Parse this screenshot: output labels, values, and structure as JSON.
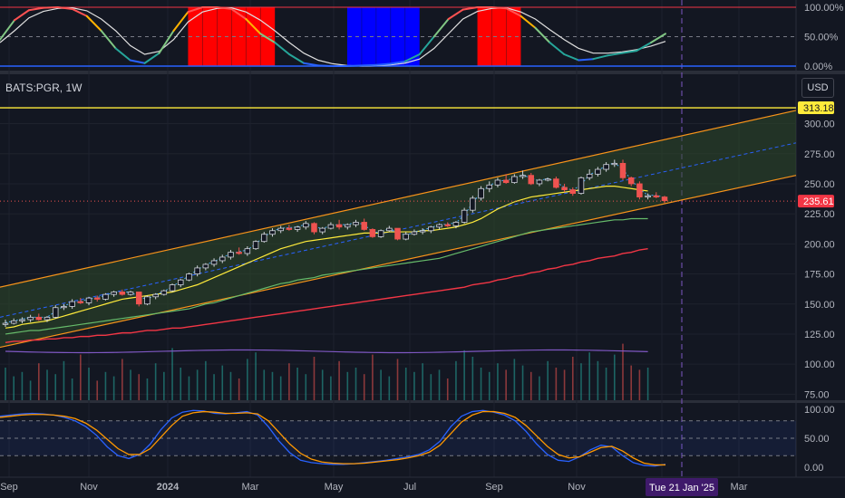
{
  "header": {
    "symbol": "BATS:PGR, 1W",
    "currency": "USD"
  },
  "colors": {
    "background": "#131722",
    "grid": "#1e222d",
    "axis_text": "#b2b5be",
    "candle_up": "#131722",
    "candle_up_border": "#26a69a",
    "candle_down": "#ef5350",
    "channel_line": "#f7931a",
    "channel_fill": "#2f4a2a",
    "midline": "#2962ff",
    "ema_fast": "#ffeb3b",
    "ema_mid": "#66bb6a",
    "ema_slow": "#f23645",
    "volume_ma": "#7e57c2",
    "hline": "#ffeb3b",
    "stoch_k": "#2962ff",
    "stoch_d": "#ff9800",
    "top_pane_red": "#ff0000",
    "top_pane_blue": "#0000ff"
  },
  "price_axis": {
    "ticks": [
      "300.00",
      "275.00",
      "250.00",
      "225.00",
      "200.00",
      "175.00",
      "150.00",
      "125.00",
      "100.00",
      "75.00"
    ]
  },
  "top_axis": {
    "ticks": [
      "100.00%",
      "50.00%",
      "0.00%"
    ]
  },
  "bottom_axis": {
    "ticks": [
      "100.00",
      "50.00",
      "0.00"
    ]
  },
  "time_axis": {
    "labels": [
      "Sep",
      "Nov",
      "2024",
      "Mar",
      "May",
      "Jul",
      "Sep",
      "Nov",
      "Jan",
      "Mar"
    ],
    "highlight": "Tue 21 Jan '25"
  },
  "price_labels": {
    "hline": "313.18",
    "last": "235.61"
  },
  "chart_data": [
    {
      "type": "line",
      "title": "",
      "ylim": [
        0,
        100
      ],
      "series": [
        {
          "values": [
            45,
            78,
            95,
            99,
            100,
            97,
            85,
            60,
            30,
            10,
            5,
            22,
            60,
            92,
            100,
            100,
            97,
            80,
            55,
            40,
            20,
            5,
            1,
            0,
            0,
            1,
            2,
            4,
            8,
            20,
            50,
            80,
            96,
            100,
            100,
            98,
            85,
            65,
            40,
            20,
            10,
            12,
            18,
            22,
            26,
            40,
            55
          ]
        },
        {
          "values": [
            40,
            60,
            82,
            93,
            98,
            99,
            94,
            80,
            60,
            35,
            20,
            25,
            45,
            75,
            92,
            98,
            99,
            92,
            78,
            60,
            40,
            22,
            10,
            4,
            1,
            0,
            1,
            2,
            5,
            12,
            30,
            55,
            80,
            93,
            98,
            99,
            92,
            80,
            62,
            45,
            30,
            22,
            22,
            24,
            28,
            34,
            42
          ]
        }
      ],
      "red_zones": [
        [
          13,
          19
        ],
        [
          33,
          36
        ]
      ],
      "blue_zone": [
        24,
        29
      ]
    },
    {
      "type": "bar",
      "title": "",
      "ylim": [
        70,
        320
      ],
      "candles": [
        {
          "o": 133,
          "h": 137,
          "l": 131,
          "c": 134
        },
        {
          "o": 134,
          "h": 138,
          "l": 133,
          "c": 136
        },
        {
          "o": 136,
          "h": 139,
          "l": 134,
          "c": 137
        },
        {
          "o": 137,
          "h": 141,
          "l": 135,
          "c": 139
        },
        {
          "o": 139,
          "h": 142,
          "l": 136,
          "c": 137
        },
        {
          "o": 137,
          "h": 140,
          "l": 135,
          "c": 139
        },
        {
          "o": 139,
          "h": 149,
          "l": 138,
          "c": 147
        },
        {
          "o": 147,
          "h": 150,
          "l": 145,
          "c": 148
        },
        {
          "o": 148,
          "h": 154,
          "l": 146,
          "c": 152
        },
        {
          "o": 152,
          "h": 155,
          "l": 150,
          "c": 151
        },
        {
          "o": 151,
          "h": 156,
          "l": 149,
          "c": 155
        },
        {
          "o": 155,
          "h": 157,
          "l": 152,
          "c": 154
        },
        {
          "o": 154,
          "h": 159,
          "l": 153,
          "c": 158
        },
        {
          "o": 158,
          "h": 161,
          "l": 156,
          "c": 160
        },
        {
          "o": 160,
          "h": 162,
          "l": 157,
          "c": 158
        },
        {
          "o": 158,
          "h": 161,
          "l": 157,
          "c": 160
        },
        {
          "o": 160,
          "h": 160,
          "l": 148,
          "c": 150
        },
        {
          "o": 150,
          "h": 157,
          "l": 149,
          "c": 156
        },
        {
          "o": 156,
          "h": 159,
          "l": 154,
          "c": 158
        },
        {
          "o": 158,
          "h": 162,
          "l": 157,
          "c": 161
        },
        {
          "o": 161,
          "h": 167,
          "l": 160,
          "c": 166
        },
        {
          "o": 166,
          "h": 171,
          "l": 164,
          "c": 170
        },
        {
          "o": 170,
          "h": 176,
          "l": 169,
          "c": 175
        },
        {
          "o": 175,
          "h": 182,
          "l": 173,
          "c": 180
        },
        {
          "o": 180,
          "h": 184,
          "l": 178,
          "c": 183
        },
        {
          "o": 183,
          "h": 188,
          "l": 181,
          "c": 186
        },
        {
          "o": 186,
          "h": 191,
          "l": 184,
          "c": 189
        },
        {
          "o": 189,
          "h": 195,
          "l": 187,
          "c": 193
        },
        {
          "o": 193,
          "h": 197,
          "l": 191,
          "c": 192
        },
        {
          "o": 192,
          "h": 198,
          "l": 190,
          "c": 196
        },
        {
          "o": 196,
          "h": 203,
          "l": 195,
          "c": 202
        },
        {
          "o": 202,
          "h": 210,
          "l": 201,
          "c": 208
        },
        {
          "o": 208,
          "h": 213,
          "l": 206,
          "c": 211
        },
        {
          "o": 211,
          "h": 215,
          "l": 209,
          "c": 213
        },
        {
          "o": 213,
          "h": 216,
          "l": 211,
          "c": 212
        },
        {
          "o": 212,
          "h": 215,
          "l": 210,
          "c": 214
        },
        {
          "o": 214,
          "h": 219,
          "l": 212,
          "c": 217
        },
        {
          "o": 217,
          "h": 218,
          "l": 208,
          "c": 210
        },
        {
          "o": 210,
          "h": 214,
          "l": 208,
          "c": 213
        },
        {
          "o": 213,
          "h": 218,
          "l": 212,
          "c": 216
        },
        {
          "o": 216,
          "h": 220,
          "l": 212,
          "c": 214
        },
        {
          "o": 214,
          "h": 217,
          "l": 212,
          "c": 216
        },
        {
          "o": 216,
          "h": 220,
          "l": 214,
          "c": 218
        },
        {
          "o": 218,
          "h": 221,
          "l": 211,
          "c": 212
        },
        {
          "o": 212,
          "h": 213,
          "l": 205,
          "c": 206
        },
        {
          "o": 206,
          "h": 212,
          "l": 205,
          "c": 211
        },
        {
          "o": 211,
          "h": 215,
          "l": 210,
          "c": 213
        },
        {
          "o": 213,
          "h": 213,
          "l": 203,
          "c": 204
        },
        {
          "o": 204,
          "h": 210,
          "l": 203,
          "c": 208
        },
        {
          "o": 208,
          "h": 212,
          "l": 207,
          "c": 210
        },
        {
          "o": 210,
          "h": 213,
          "l": 208,
          "c": 211
        },
        {
          "o": 211,
          "h": 215,
          "l": 209,
          "c": 214
        },
        {
          "o": 214,
          "h": 217,
          "l": 212,
          "c": 216
        },
        {
          "o": 216,
          "h": 218,
          "l": 214,
          "c": 215
        },
        {
          "o": 215,
          "h": 219,
          "l": 213,
          "c": 218
        },
        {
          "o": 218,
          "h": 230,
          "l": 217,
          "c": 228
        },
        {
          "o": 228,
          "h": 240,
          "l": 226,
          "c": 238
        },
        {
          "o": 238,
          "h": 248,
          "l": 236,
          "c": 246
        },
        {
          "o": 246,
          "h": 252,
          "l": 243,
          "c": 249
        },
        {
          "o": 249,
          "h": 255,
          "l": 247,
          "c": 253
        },
        {
          "o": 253,
          "h": 258,
          "l": 250,
          "c": 251
        },
        {
          "o": 251,
          "h": 258,
          "l": 250,
          "c": 256
        },
        {
          "o": 256,
          "h": 261,
          "l": 254,
          "c": 257
        },
        {
          "o": 257,
          "h": 259,
          "l": 249,
          "c": 250
        },
        {
          "o": 250,
          "h": 254,
          "l": 248,
          "c": 253
        },
        {
          "o": 253,
          "h": 255,
          "l": 252,
          "c": 254
        },
        {
          "o": 254,
          "h": 256,
          "l": 246,
          "c": 247
        },
        {
          "o": 247,
          "h": 250,
          "l": 243,
          "c": 245
        },
        {
          "o": 245,
          "h": 247,
          "l": 240,
          "c": 242
        },
        {
          "o": 242,
          "h": 256,
          "l": 241,
          "c": 255
        },
        {
          "o": 255,
          "h": 262,
          "l": 253,
          "c": 258
        },
        {
          "o": 258,
          "h": 264,
          "l": 256,
          "c": 262
        },
        {
          "o": 262,
          "h": 268,
          "l": 260,
          "c": 266
        },
        {
          "o": 266,
          "h": 270,
          "l": 264,
          "c": 267
        },
        {
          "o": 267,
          "h": 270,
          "l": 253,
          "c": 255
        },
        {
          "o": 255,
          "h": 256,
          "l": 248,
          "c": 250
        },
        {
          "o": 250,
          "h": 252,
          "l": 237,
          "c": 239
        },
        {
          "o": 239,
          "h": 242,
          "l": 237,
          "c": 240
        },
        {
          "o": 240,
          "h": 243,
          "l": 238,
          "c": 239
        },
        {
          "o": 239,
          "h": 240,
          "l": 234,
          "c": 236
        }
      ],
      "ema_fast": [
        130,
        131,
        133,
        134,
        135,
        136,
        138,
        140,
        142,
        144,
        146,
        148,
        150,
        152,
        154,
        155,
        156,
        157,
        158,
        159,
        160,
        162,
        164,
        166,
        169,
        172,
        175,
        178,
        181,
        184,
        187,
        190,
        193,
        196,
        198,
        200,
        202,
        203,
        204,
        205,
        206,
        207,
        208,
        209,
        209,
        209,
        210,
        210,
        210,
        210,
        211,
        211,
        212,
        213,
        214,
        216,
        218,
        221,
        225,
        229,
        232,
        235,
        237,
        239,
        240,
        241,
        242,
        243,
        244,
        245,
        246,
        247,
        248,
        248,
        247,
        246,
        245,
        244
      ],
      "ema_mid": [
        125,
        126,
        127,
        128,
        128,
        129,
        130,
        131,
        132,
        133,
        134,
        135,
        136,
        137,
        138,
        139,
        140,
        141,
        142,
        143,
        144,
        145,
        146,
        148,
        150,
        151,
        153,
        155,
        157,
        159,
        161,
        163,
        165,
        167,
        168,
        170,
        171,
        172,
        174,
        175,
        176,
        177,
        178,
        179,
        180,
        181,
        182,
        183,
        184,
        185,
        186,
        187,
        188,
        190,
        192,
        194,
        196,
        198,
        200,
        202,
        204,
        206,
        208,
        210,
        211,
        212,
        213,
        214,
        215,
        216,
        217,
        218,
        219,
        220,
        220,
        221,
        221,
        221
      ],
      "ema_slow": [
        118,
        119,
        119,
        120,
        120,
        121,
        121,
        122,
        122,
        123,
        123,
        124,
        124,
        125,
        126,
        126,
        127,
        128,
        128,
        129,
        130,
        130,
        131,
        132,
        133,
        134,
        135,
        136,
        137,
        138,
        139,
        140,
        141,
        142,
        143,
        144,
        145,
        146,
        147,
        148,
        149,
        150,
        151,
        152,
        153,
        154,
        155,
        156,
        157,
        158,
        159,
        160,
        161,
        162,
        163,
        164,
        166,
        167,
        168,
        170,
        171,
        173,
        174,
        176,
        177,
        179,
        180,
        182,
        183,
        185,
        186,
        188,
        189,
        190,
        192,
        193,
        195,
        196
      ],
      "volume": [
        30,
        22,
        26,
        18,
        34,
        28,
        24,
        36,
        20,
        42,
        30,
        18,
        26,
        22,
        38,
        28,
        24,
        20,
        34,
        26,
        48,
        30,
        22,
        28,
        36,
        24,
        32,
        26,
        20,
        38,
        44,
        28,
        26,
        22,
        34,
        30,
        24,
        40,
        28,
        22,
        36,
        26,
        30,
        24,
        42,
        28,
        22,
        38,
        30,
        26,
        34,
        24,
        28,
        20,
        36,
        46,
        40,
        30,
        26,
        34,
        28,
        38,
        32,
        26,
        22,
        36,
        30,
        28,
        40,
        34,
        44,
        36,
        30,
        42,
        52,
        32,
        28,
        30
      ],
      "channel": {
        "upper_start": 164,
        "upper_end": 311,
        "lower_start": 114,
        "lower_end": 257
      },
      "hline": 313.18,
      "last": 235.61
    },
    {
      "type": "line",
      "title": "",
      "ylim": [
        0,
        100
      ],
      "series": [
        {
          "values": [
            88,
            90,
            92,
            93,
            92,
            90,
            86,
            80,
            70,
            55,
            35,
            20,
            15,
            22,
            40,
            65,
            85,
            95,
            98,
            97,
            93,
            92,
            94,
            96,
            90,
            70,
            45,
            25,
            12,
            8,
            6,
            5,
            5,
            6,
            8,
            10,
            12,
            15,
            18,
            22,
            30,
            45,
            70,
            88,
            96,
            98,
            95,
            90,
            80,
            62,
            40,
            22,
            12,
            10,
            18,
            30,
            38,
            35,
            20,
            8,
            3,
            2,
            5
          ]
        },
        {
          "values": [
            86,
            88,
            90,
            91,
            91,
            90,
            88,
            84,
            76,
            64,
            48,
            32,
            22,
            22,
            32,
            52,
            72,
            88,
            94,
            96,
            95,
            93,
            93,
            94,
            92,
            80,
            60,
            40,
            24,
            14,
            9,
            7,
            6,
            6,
            7,
            9,
            11,
            13,
            16,
            20,
            26,
            38,
            58,
            78,
            90,
            96,
            96,
            93,
            86,
            72,
            54,
            36,
            22,
            16,
            18,
            26,
            34,
            36,
            28,
            16,
            7,
            4,
            4
          ]
        }
      ]
    }
  ]
}
